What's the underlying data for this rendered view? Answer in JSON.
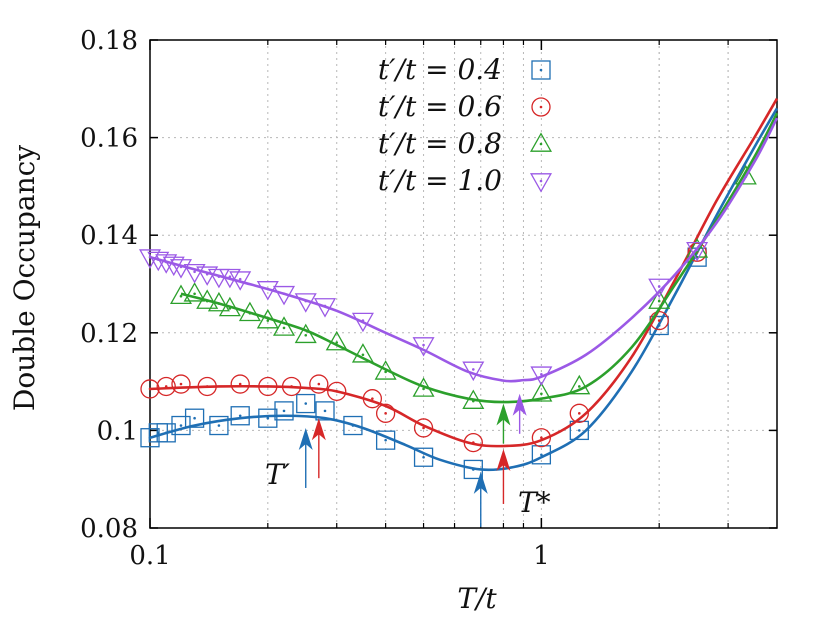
{
  "chart_data": {
    "type": "line",
    "title": "",
    "xlabel": "T/t",
    "ylabel": "Double Occupancy",
    "xscale": "log",
    "xlim": [
      0.1,
      4.0
    ],
    "ylim": [
      0.08,
      0.18
    ],
    "xticks": [
      {
        "value": 0.1,
        "label": "0.1"
      },
      {
        "value": 1,
        "label": "1"
      }
    ],
    "yticks": [
      {
        "value": 0.08,
        "label": "0.08"
      },
      {
        "value": 0.1,
        "label": "0.1"
      },
      {
        "value": 0.12,
        "label": "0.12"
      },
      {
        "value": 0.14,
        "label": "0.14"
      },
      {
        "value": 0.16,
        "label": "0.16"
      },
      {
        "value": 0.18,
        "label": "0.18"
      }
    ],
    "grid": true,
    "legend_position": "top-center",
    "series": [
      {
        "name": "t′/t = 0.4",
        "marker": "square",
        "color": "#1f6fb4",
        "points": [
          [
            0.1,
            0.0985
          ],
          [
            0.105,
            0.0995
          ],
          [
            0.11,
            0.0995
          ],
          [
            0.12,
            0.101
          ],
          [
            0.13,
            0.1025
          ],
          [
            0.15,
            0.101
          ],
          [
            0.17,
            0.103
          ],
          [
            0.2,
            0.1025
          ],
          [
            0.22,
            0.104
          ],
          [
            0.25,
            0.1055
          ],
          [
            0.28,
            0.104
          ],
          [
            0.33,
            0.101
          ],
          [
            0.4,
            0.098
          ],
          [
            0.5,
            0.0945
          ],
          [
            0.67,
            0.092
          ],
          [
            1.0,
            0.095
          ],
          [
            1.25,
            0.1
          ],
          [
            2.0,
            0.1215
          ],
          [
            2.5,
            0.1355
          ]
        ],
        "curve": [
          [
            0.1,
            0.0985
          ],
          [
            0.13,
            0.101
          ],
          [
            0.17,
            0.1025
          ],
          [
            0.22,
            0.103
          ],
          [
            0.28,
            0.1025
          ],
          [
            0.35,
            0.1005
          ],
          [
            0.45,
            0.097
          ],
          [
            0.55,
            0.094
          ],
          [
            0.7,
            0.092
          ],
          [
            0.85,
            0.0925
          ],
          [
            1.0,
            0.0945
          ],
          [
            1.3,
            0.1
          ],
          [
            1.7,
            0.112
          ],
          [
            2.2,
            0.128
          ],
          [
            2.8,
            0.144
          ],
          [
            3.5,
            0.158
          ],
          [
            4.0,
            0.166
          ]
        ]
      },
      {
        "name": "t′/t = 0.6",
        "marker": "circle",
        "color": "#d62728",
        "points": [
          [
            0.1,
            0.1085
          ],
          [
            0.11,
            0.109
          ],
          [
            0.12,
            0.1095
          ],
          [
            0.14,
            0.109
          ],
          [
            0.17,
            0.1095
          ],
          [
            0.2,
            0.109
          ],
          [
            0.23,
            0.109
          ],
          [
            0.27,
            0.1095
          ],
          [
            0.3,
            0.108
          ],
          [
            0.37,
            0.1065
          ],
          [
            0.4,
            0.1035
          ],
          [
            0.5,
            0.1005
          ],
          [
            0.67,
            0.0975
          ],
          [
            1.0,
            0.0985
          ],
          [
            1.25,
            0.1035
          ],
          [
            2.0,
            0.1225
          ],
          [
            2.5,
            0.1365
          ]
        ],
        "curve": [
          [
            0.1,
            0.1085
          ],
          [
            0.15,
            0.109
          ],
          [
            0.2,
            0.109
          ],
          [
            0.25,
            0.1087
          ],
          [
            0.3,
            0.108
          ],
          [
            0.4,
            0.105
          ],
          [
            0.5,
            0.101
          ],
          [
            0.65,
            0.0975
          ],
          [
            0.8,
            0.0968
          ],
          [
            1.0,
            0.098
          ],
          [
            1.3,
            0.1035
          ],
          [
            1.7,
            0.115
          ],
          [
            2.2,
            0.131
          ],
          [
            2.8,
            0.147
          ],
          [
            3.5,
            0.16
          ],
          [
            4.0,
            0.168
          ]
        ]
      },
      {
        "name": "t′/t = 0.8",
        "marker": "triangle-up",
        "color": "#2ca02c",
        "points": [
          [
            0.12,
            0.1275
          ],
          [
            0.13,
            0.128
          ],
          [
            0.14,
            0.1265
          ],
          [
            0.15,
            0.126
          ],
          [
            0.16,
            0.125
          ],
          [
            0.18,
            0.124
          ],
          [
            0.2,
            0.1225
          ],
          [
            0.22,
            0.121
          ],
          [
            0.25,
            0.1195
          ],
          [
            0.3,
            0.118
          ],
          [
            0.35,
            0.1155
          ],
          [
            0.4,
            0.112
          ],
          [
            0.5,
            0.1085
          ],
          [
            0.67,
            0.106
          ],
          [
            1.0,
            0.1075
          ],
          [
            1.25,
            0.109
          ],
          [
            2.0,
            0.1265
          ],
          [
            2.5,
            0.137
          ],
          [
            3.33,
            0.152
          ]
        ],
        "curve": [
          [
            0.12,
            0.128
          ],
          [
            0.15,
            0.126
          ],
          [
            0.2,
            0.123
          ],
          [
            0.25,
            0.1205
          ],
          [
            0.3,
            0.1175
          ],
          [
            0.4,
            0.1125
          ],
          [
            0.5,
            0.109
          ],
          [
            0.65,
            0.1065
          ],
          [
            0.8,
            0.1058
          ],
          [
            1.0,
            0.1065
          ],
          [
            1.3,
            0.109
          ],
          [
            1.7,
            0.117
          ],
          [
            2.2,
            0.13
          ],
          [
            2.8,
            0.143
          ],
          [
            3.5,
            0.156
          ],
          [
            4.0,
            0.165
          ]
        ]
      },
      {
        "name": "t′/t = 1.0",
        "marker": "triangle-down",
        "color": "#9b59e6",
        "points": [
          [
            0.1,
            0.1355
          ],
          [
            0.105,
            0.135
          ],
          [
            0.11,
            0.1345
          ],
          [
            0.115,
            0.134
          ],
          [
            0.12,
            0.1335
          ],
          [
            0.13,
            0.1325
          ],
          [
            0.14,
            0.132
          ],
          [
            0.15,
            0.1315
          ],
          [
            0.16,
            0.1315
          ],
          [
            0.17,
            0.131
          ],
          [
            0.2,
            0.129
          ],
          [
            0.22,
            0.128
          ],
          [
            0.25,
            0.1265
          ],
          [
            0.28,
            0.1255
          ],
          [
            0.35,
            0.1225
          ],
          [
            0.5,
            0.1175
          ],
          [
            0.67,
            0.1125
          ],
          [
            1.0,
            0.1115
          ],
          [
            2.0,
            0.1295
          ],
          [
            2.5,
            0.137
          ]
        ],
        "curve": [
          [
            0.1,
            0.1355
          ],
          [
            0.13,
            0.133
          ],
          [
            0.17,
            0.1305
          ],
          [
            0.22,
            0.128
          ],
          [
            0.3,
            0.1245
          ],
          [
            0.4,
            0.12
          ],
          [
            0.5,
            0.1165
          ],
          [
            0.65,
            0.112
          ],
          [
            0.8,
            0.1102
          ],
          [
            0.9,
            0.1103
          ],
          [
            1.0,
            0.111
          ],
          [
            1.3,
            0.1155
          ],
          [
            1.7,
            0.123
          ],
          [
            2.2,
            0.132
          ],
          [
            2.8,
            0.1425
          ],
          [
            3.5,
            0.155
          ],
          [
            4.0,
            0.164
          ]
        ]
      }
    ],
    "annotations": [
      {
        "label": "T′",
        "arrows": [
          {
            "x": 0.25,
            "color": "#1f6fb4",
            "y": 0.1005
          },
          {
            "x": 0.27,
            "color": "#d62728",
            "y": 0.1025
          }
        ]
      },
      {
        "label": "T*",
        "arrows": [
          {
            "x": 0.7,
            "color": "#1f6fb4",
            "y": 0.0915
          },
          {
            "x": 0.8,
            "color": "#d62728",
            "y": 0.0962
          },
          {
            "x": 0.8,
            "color": "#2ca02c",
            "y": 0.1055
          },
          {
            "x": 0.88,
            "color": "#9b59e6",
            "y": 0.1075
          }
        ]
      }
    ]
  }
}
